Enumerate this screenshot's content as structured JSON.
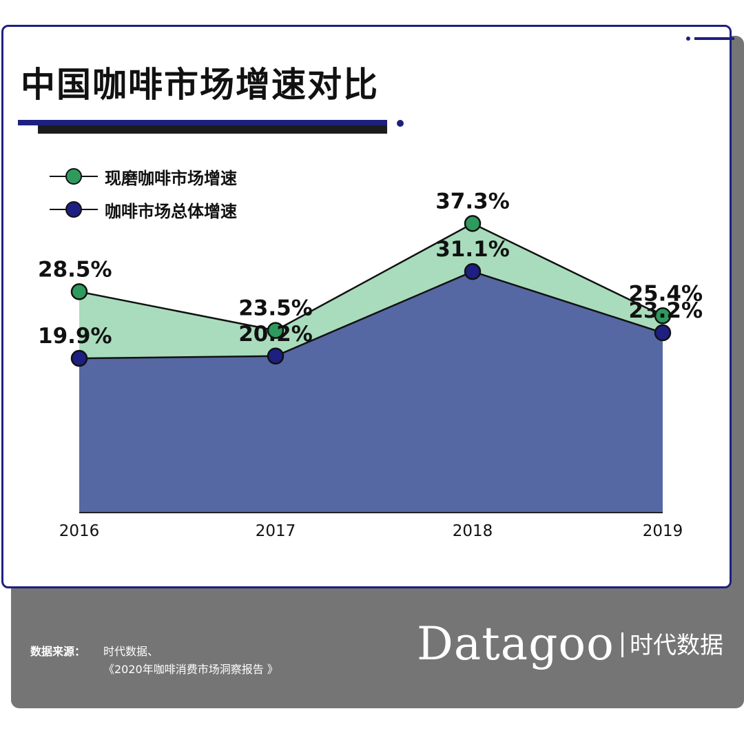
{
  "title": "中国咖啡市场增速对比",
  "legend": [
    {
      "label": "现磨咖啡市场增速",
      "color": "#2e9a5e"
    },
    {
      "label": "咖啡市场总体增速",
      "color": "#1d2080"
    }
  ],
  "chart_data": {
    "type": "area",
    "categories": [
      "2016",
      "2017",
      "2018",
      "2019"
    ],
    "series": [
      {
        "name": "现磨咖啡市场增速",
        "values": [
          28.5,
          23.5,
          37.3,
          25.4
        ],
        "labels": [
          "28.5%",
          "23.5%",
          "37.3%",
          "25.4%"
        ],
        "fill": "#a8dcbd",
        "marker": "#2e9a5e"
      },
      {
        "name": "咖啡市场总体增速",
        "values": [
          19.9,
          20.2,
          31.1,
          23.2
        ],
        "labels": [
          "19.9%",
          "20.2%",
          "31.1%",
          "23.2%"
        ],
        "fill": "#5568a4",
        "marker": "#1d2080"
      }
    ],
    "unit": "%",
    "grid": false,
    "legend_position": "top-left"
  },
  "footer": {
    "source_label": "数据来源：",
    "source_line1": "时代数据、",
    "source_line2": "《2020年咖啡消费市场洞察报告 》",
    "brand": "Datagoo",
    "brand_cn": "时代数据"
  }
}
